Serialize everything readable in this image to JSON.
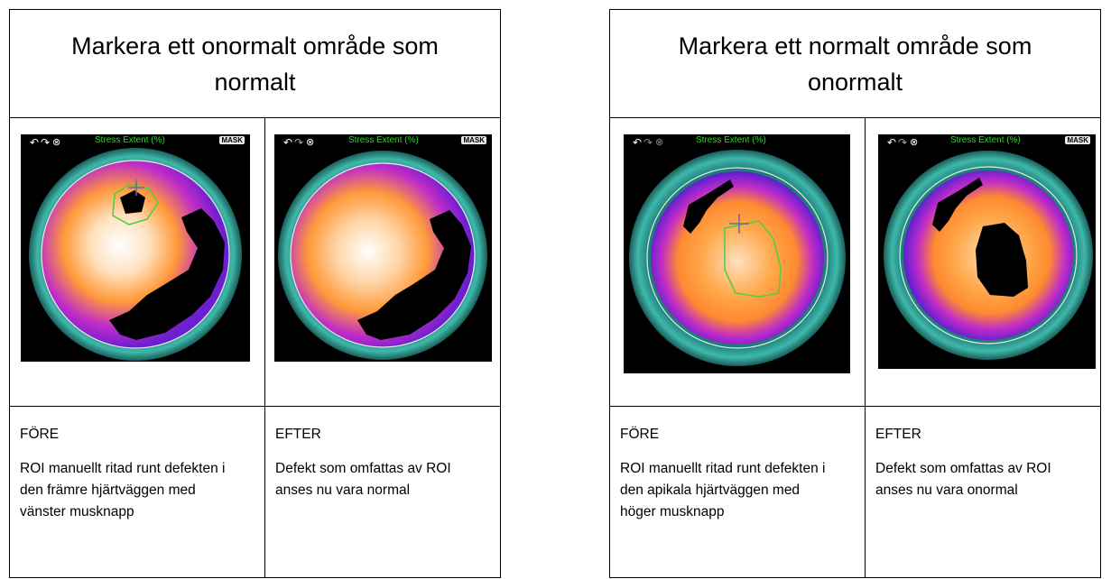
{
  "panels": [
    {
      "title": "Markera ett onormalt område som normalt",
      "before_image": {
        "overlay_label": "Stress Extent (%)",
        "mask_label": "MASK",
        "icons": [
          "undo-icon",
          "redo-icon",
          "close-icon"
        ]
      },
      "after_image": {
        "overlay_label": "Stress Extent (%)",
        "mask_label": "MASK",
        "icons": [
          "undo-icon",
          "redo-icon",
          "close-icon"
        ]
      },
      "before": {
        "heading": "FÖRE",
        "text": "ROI manuellt ritad runt defekten i den främre hjärtväggen med vänster musknapp"
      },
      "after": {
        "heading": "EFTER",
        "text": "Defekt som omfattas av ROI anses nu vara normal"
      }
    },
    {
      "title": "Markera ett normalt område som onormalt",
      "before_image": {
        "overlay_label": "Stress Extent (%)",
        "icons": [
          "undo-icon",
          "redo-icon",
          "close-icon"
        ]
      },
      "after_image": {
        "overlay_label": "Stress Extent (%)",
        "mask_label": "MASK",
        "icons": [
          "undo-icon",
          "redo-icon",
          "close-icon"
        ]
      },
      "before": {
        "heading": "FÖRE",
        "text": "ROI manuellt ritad runt defekten i den apikala hjärtväggen med höger musknapp"
      },
      "after": {
        "heading": "EFTER",
        "text": "Defekt som omfattas av ROI anses nu vara onormal"
      }
    }
  ],
  "colors": {
    "overlay_label": "#22dd22",
    "roi_outline": "#55cc44",
    "ring": "#2aa59a",
    "hot": "#ff9a3a",
    "cold": "#6a1fd0"
  }
}
